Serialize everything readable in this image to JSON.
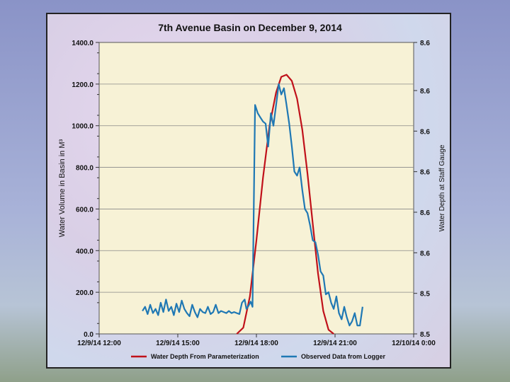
{
  "chart_data": {
    "type": "line",
    "title": "7th Avenue Basin on December 9, 2014",
    "ylabel": "Water Volume in Basin in M³",
    "y2label": "Water Depth at Staff Gauge",
    "ylim": [
      0,
      1400
    ],
    "y_ticks": [
      "0.0",
      "200.0",
      "400.0",
      "600.0",
      "800.0",
      "1000.0",
      "1200.0",
      "1400.0"
    ],
    "y2_ticks": [
      "8.5",
      "8.5",
      "8.6",
      "8.6",
      "8.6",
      "8.6",
      "8.6"
    ],
    "x_ticks": [
      "12/9/14 12:00",
      "12/9/14 15:00",
      "12/9/14 18:00",
      "12/9/14 21:00",
      "12/10/14 0:00"
    ],
    "xlim_hours": [
      12,
      24
    ],
    "grid": true,
    "legend_position": "bottom",
    "colors": {
      "parameterization": "#c0111a",
      "logger": "#1f78b4",
      "plot_bg": "#f7f2d6"
    },
    "series": [
      {
        "name": "Water Depth From Parameterization",
        "x": [
          17.25,
          17.5,
          17.75,
          18.0,
          18.25,
          18.5,
          18.75,
          18.95,
          19.15,
          19.35,
          19.55,
          19.75,
          19.95,
          20.15,
          20.35,
          20.55,
          20.75,
          20.95
        ],
        "y": [
          0,
          30,
          180,
          450,
          750,
          1000,
          1160,
          1235,
          1245,
          1215,
          1130,
          980,
          770,
          530,
          290,
          110,
          20,
          0
        ]
      },
      {
        "name": "Observed Data from Logger",
        "x": [
          13.65,
          13.75,
          13.85,
          13.95,
          14.05,
          14.15,
          14.25,
          14.35,
          14.45,
          14.55,
          14.65,
          14.75,
          14.85,
          14.95,
          15.05,
          15.15,
          15.25,
          15.35,
          15.45,
          15.55,
          15.65,
          15.75,
          15.85,
          15.95,
          16.05,
          16.15,
          16.25,
          16.35,
          16.45,
          16.55,
          16.65,
          16.75,
          16.85,
          16.95,
          17.05,
          17.15,
          17.25,
          17.35,
          17.45,
          17.55,
          17.62,
          17.7,
          17.78,
          17.85,
          17.95,
          18.05,
          18.15,
          18.25,
          18.35,
          18.45,
          18.55,
          18.65,
          18.75,
          18.85,
          18.95,
          19.05,
          19.15,
          19.25,
          19.35,
          19.45,
          19.55,
          19.65,
          19.75,
          19.85,
          19.95,
          20.05,
          20.15,
          20.25,
          20.35,
          20.45,
          20.55,
          20.65,
          20.75,
          20.85,
          20.95,
          21.05,
          21.15,
          21.25,
          21.35,
          21.45,
          21.55,
          21.65,
          21.75,
          21.85,
          21.95,
          22.05
        ],
        "y": [
          110,
          130,
          95,
          140,
          100,
          120,
          90,
          150,
          105,
          165,
          110,
          130,
          90,
          145,
          105,
          160,
          120,
          100,
          85,
          140,
          105,
          80,
          120,
          105,
          100,
          130,
          95,
          105,
          140,
          100,
          110,
          105,
          100,
          110,
          100,
          105,
          100,
          95,
          150,
          165,
          120,
          135,
          155,
          130,
          1100,
          1060,
          1040,
          1020,
          1010,
          900,
          1060,
          1000,
          1100,
          1200,
          1150,
          1180,
          1100,
          1010,
          900,
          780,
          760,
          800,
          690,
          600,
          580,
          520,
          450,
          440,
          380,
          300,
          280,
          190,
          200,
          150,
          120,
          180,
          100,
          70,
          130,
          80,
          40,
          60,
          100,
          40,
          40,
          130
        ]
      }
    ]
  }
}
